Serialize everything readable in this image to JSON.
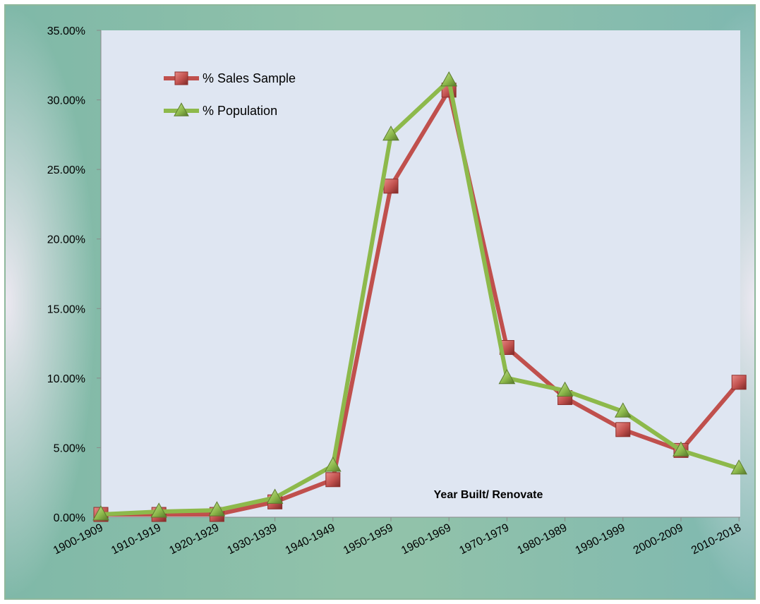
{
  "chart_data": {
    "type": "line",
    "title": "",
    "xlabel": "Year Built/ Renovate",
    "ylabel": "",
    "categories": [
      "1900-1909",
      "1910-1919",
      "1920-1929",
      "1930-1939",
      "1940-1949",
      "1950-1959",
      "1960-1969",
      "1970-1979",
      "1980-1989",
      "1990-1999",
      "2000-2009",
      "2010-2018"
    ],
    "ylim": [
      0,
      0.35
    ],
    "yticks": [
      0,
      0.05,
      0.1,
      0.15,
      0.2,
      0.25,
      0.3,
      0.35
    ],
    "ytick_labels": [
      "0.00%",
      "5.00%",
      "10.00%",
      "15.00%",
      "20.00%",
      "25.00%",
      "30.00%",
      "35.00%"
    ],
    "legend_position": "top-left",
    "grid": false,
    "series": [
      {
        "name": "% Sales Sample",
        "color": "#c0504d",
        "marker": "square",
        "values": [
          0.002,
          0.002,
          0.002,
          0.011,
          0.027,
          0.238,
          0.307,
          0.122,
          0.086,
          0.063,
          0.048,
          0.097
        ]
      },
      {
        "name": "% Population",
        "color": "#8db94b",
        "marker": "triangle",
        "values": [
          0.002,
          0.004,
          0.005,
          0.014,
          0.037,
          0.275,
          0.314,
          0.1,
          0.091,
          0.076,
          0.048,
          0.035
        ]
      }
    ]
  },
  "colors": {
    "plot_background": "#dfe6f2",
    "axis": "#8a8a8a"
  }
}
